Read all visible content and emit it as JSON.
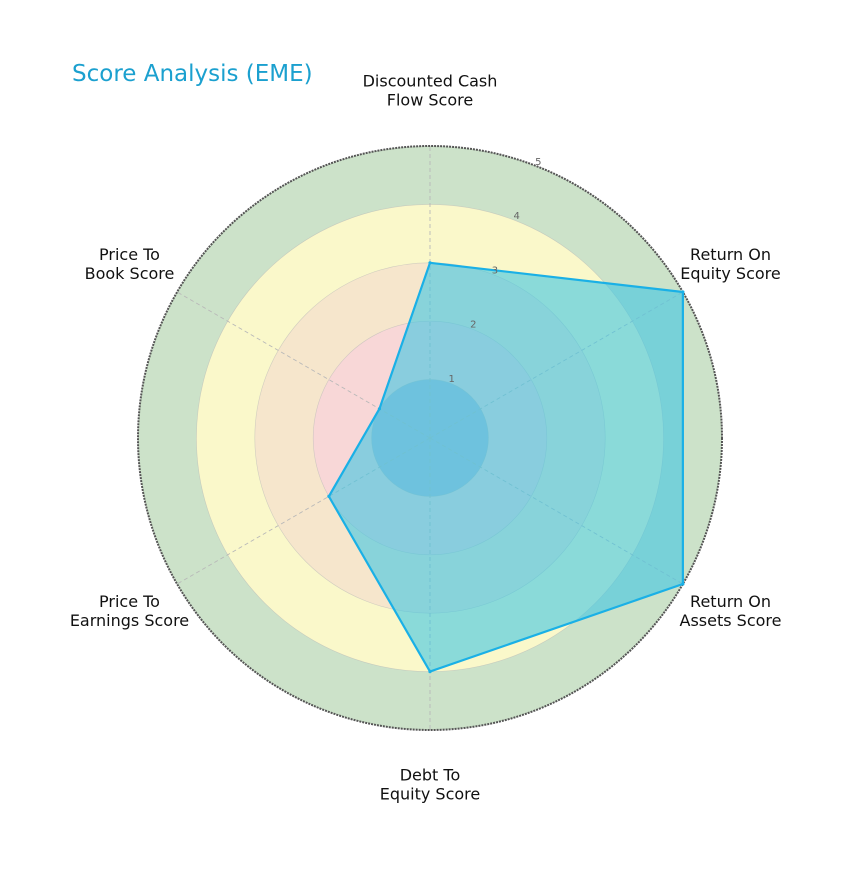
{
  "chart_data": {
    "type": "radar",
    "title": "Score Analysis (EME)",
    "axes": [
      [
        "Discounted Cash",
        "Flow Score"
      ],
      [
        "Return On",
        "Equity Score"
      ],
      [
        "Return On",
        "Assets Score"
      ],
      [
        "Debt To",
        "Equity Score"
      ],
      [
        "Price To",
        "Earnings Score"
      ],
      [
        "Price To",
        "Book Score"
      ]
    ],
    "categories": [
      "Discounted Cash Flow Score",
      "Return On Equity Score",
      "Return On Assets Score",
      "Debt To Equity Score",
      "Price To Earnings Score",
      "Price To Book Score"
    ],
    "values": [
      3,
      5,
      5,
      4,
      2,
      1
    ],
    "rmax": 5,
    "ticks": [
      "1",
      "2",
      "3",
      "4",
      "5"
    ],
    "grid": true,
    "background_bands": [
      {
        "from": 0,
        "to": 1,
        "color": "#7aa6d6"
      },
      {
        "from": 1,
        "to": 2,
        "color": "#f8d7d7"
      },
      {
        "from": 2,
        "to": 3,
        "color": "#f6e6cc"
      },
      {
        "from": 3,
        "to": 4,
        "color": "#faf8ca"
      },
      {
        "from": 4,
        "to": 5,
        "color": "#cce2c9"
      }
    ],
    "colors": {
      "title": "#1ba0cf",
      "series_fill": "#3fc6e3",
      "series_stroke": "#1ab0e6",
      "outer_ring": "#555555",
      "grid": "#b8b8b8"
    }
  }
}
